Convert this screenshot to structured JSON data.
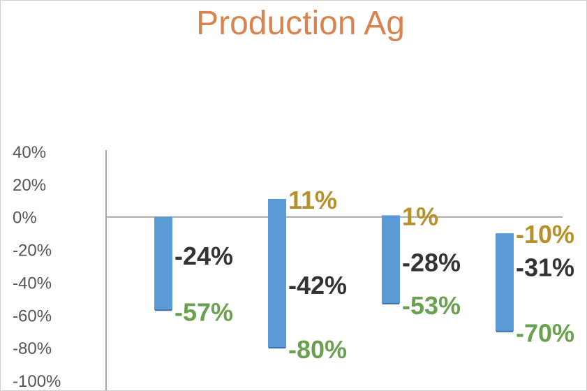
{
  "chart_data": {
    "type": "bar",
    "title": "Production Ag",
    "xlabel": "",
    "ylabel": "",
    "ylim": [
      -100,
      40
    ],
    "yticks": [
      40,
      20,
      0,
      -20,
      -40,
      -60,
      -80,
      -100
    ],
    "ytick_labels": [
      "40%",
      "20%",
      "0%",
      "-20%",
      "-40%",
      "-60%",
      "-80%",
      "-100%"
    ],
    "grid": false,
    "legend": "none",
    "bars": [
      {
        "high": 0,
        "low": -57,
        "mid": -24,
        "high_label": "",
        "mid_label": "-24%",
        "low_label": "-57%"
      },
      {
        "high": 11,
        "low": -80,
        "mid": -42,
        "high_label": "11%",
        "mid_label": "-42%",
        "low_label": "-80%"
      },
      {
        "high": 1,
        "low": -53,
        "mid": -28,
        "high_label": "1%",
        "mid_label": "-28%",
        "low_label": "-53%"
      },
      {
        "high": -10,
        "low": -70,
        "mid": -31,
        "high_label": "-10%",
        "mid_label": "-31%",
        "low_label": "-70%"
      }
    ],
    "colors": {
      "title": "#d9834f",
      "bar": "#5b9bd5",
      "high_label": "#b8902a",
      "mid_label": "#333333",
      "low_label": "#6aa150",
      "axis": "#a6a6a6",
      "tick_label": "#555555"
    }
  }
}
